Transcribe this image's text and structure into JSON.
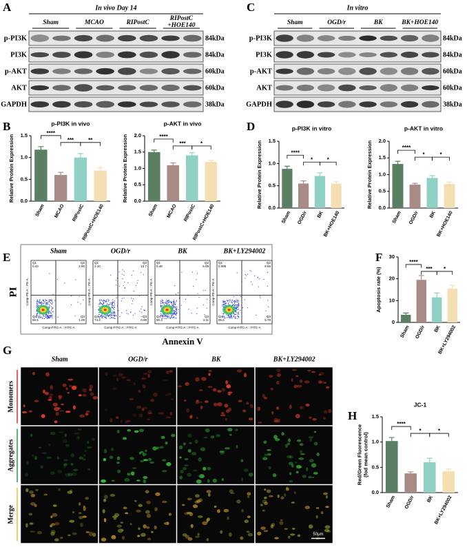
{
  "panel_labels": [
    "A",
    "B",
    "C",
    "D",
    "E",
    "F",
    "G",
    "H"
  ],
  "blots": [
    {
      "title": "In vivo Day 14",
      "groups": [
        "Sham",
        "MCAO",
        "RIPostC",
        [
          "RIPostC",
          "+HOE140"
        ]
      ],
      "rows": [
        "p-PI3K",
        "PI3K",
        "p-AKT",
        "AKT",
        "GAPDH"
      ],
      "sizes": [
        "84kDa",
        "84kDa",
        "60kDa",
        "60kDa",
        "38kDa"
      ]
    },
    {
      "title": "In vitro",
      "groups": [
        "Sham",
        "OGD/r",
        "BK",
        "BK+HOE140"
      ],
      "rows": [
        "p-PI3K",
        "PI3K",
        "p-AKT",
        "AKT",
        "GAPDH"
      ],
      "sizes": [
        "84kDa",
        "84kDa",
        "60kDa",
        "60kDa",
        "38kDa"
      ]
    }
  ],
  "chart_data": [
    {
      "type": "bar",
      "title": "p-PI3K in vivo",
      "ylabel": "Relative Protein Expression",
      "categories": [
        "Sham",
        "MCAO",
        "RIPostC",
        "RIPostC+HOE140"
      ],
      "values": [
        1.18,
        0.6,
        1.0,
        0.7
      ],
      "errors": [
        0.07,
        0.06,
        0.09,
        0.07
      ],
      "colors": [
        "#5b7f63",
        "#a88a86",
        "#8fd1c4",
        "#f4dfb2"
      ],
      "ylim": [
        0,
        1.5
      ],
      "yticks": [
        {
          "value": 0,
          "label": "0.0"
        },
        0.5,
        {
          "value": 1,
          "label": "1.0"
        },
        1.5
      ],
      "significance": [
        "****",
        "***",
        "**"
      ]
    },
    {
      "type": "bar",
      "title": "p-AKT in vivo",
      "ylabel": "Relative Protein Expression",
      "categories": [
        "Sham",
        "MCAO",
        "RIPostC",
        "RIPostC+HOE140"
      ],
      "values": [
        1.5,
        1.1,
        1.4,
        1.2
      ],
      "errors": [
        0.06,
        0.07,
        0.08,
        0.05
      ],
      "colors": [
        "#5b7f63",
        "#a88a86",
        "#8fd1c4",
        "#f4dfb2"
      ],
      "ylim": [
        0,
        2
      ],
      "yticks": [
        {
          "value": 0,
          "label": "0.0"
        },
        0.5,
        {
          "value": 1,
          "label": "1.0"
        },
        1.5,
        {
          "value": 2,
          "label": "2.0"
        }
      ],
      "significance": [
        "****",
        "***",
        "*"
      ]
    },
    {
      "type": "bar",
      "title": "p-PI3K in vitro",
      "ylabel": "Relative Protein Expression",
      "categories": [
        "Sham",
        "OGD/r",
        "BK",
        "BK+HOE140"
      ],
      "values": [
        0.88,
        0.55,
        0.72,
        0.55
      ],
      "errors": [
        0.06,
        0.06,
        0.07,
        0.04
      ],
      "colors": [
        "#5b7f63",
        "#a88a86",
        "#8fd1c4",
        "#f4dfb2"
      ],
      "ylim": [
        0,
        1.5
      ],
      "yticks": [
        {
          "value": 0,
          "label": "0.0"
        },
        0.5,
        {
          "value": 1,
          "label": "1.0"
        },
        1.5
      ],
      "significance": [
        "****",
        "*",
        "*"
      ]
    },
    {
      "type": "bar",
      "title": "p-AKT in vitro",
      "ylabel": "Relative Protein Expression",
      "categories": [
        "Sham",
        "OGD/r",
        "BK",
        "BK+HOE140"
      ],
      "values": [
        1.32,
        0.7,
        0.9,
        0.72
      ],
      "errors": [
        0.08,
        0.04,
        0.07,
        0.06
      ],
      "colors": [
        "#5b7f63",
        "#a88a86",
        "#8fd1c4",
        "#f4dfb2"
      ],
      "ylim": [
        0,
        2
      ],
      "yticks": [
        {
          "value": 0,
          "label": "0.0"
        },
        0.5,
        {
          "value": 1,
          "label": "1.0"
        },
        1.5,
        {
          "value": 2,
          "label": "2.0"
        }
      ],
      "significance": [
        "****",
        "*",
        "*"
      ]
    },
    {
      "type": "bar",
      "ylabel": "Apoptosis rate (%)",
      "categories": [
        "Sham",
        "OGD/r",
        "BK",
        "BK+LY294002"
      ],
      "values": [
        3.5,
        19.5,
        11.5,
        15.5
      ],
      "errors": [
        0.8,
        2.0,
        2.0,
        1.5
      ],
      "colors": [
        "#5b7f63",
        "#a88a86",
        "#8fd1c4",
        "#f4dfb2"
      ],
      "ylim": [
        0,
        30
      ],
      "yticks": [
        0,
        10,
        20,
        30
      ],
      "significance": [
        "****",
        "***",
        "*"
      ]
    },
    {
      "type": "bar",
      "title": "JC-1",
      "ylabel": [
        "Red/Green Fluorescence",
        "(fod mean control)"
      ],
      "categories": [
        "Sham",
        "OGD/r",
        "BK",
        "BK+LY294002"
      ],
      "values": [
        1.02,
        0.38,
        0.6,
        0.42
      ],
      "errors": [
        0.07,
        0.03,
        0.08,
        0.05
      ],
      "colors": [
        "#5b7f63",
        "#a88a86",
        "#8fd1c4",
        "#f4dfb2"
      ],
      "ylim": [
        0,
        1.5
      ],
      "yticks": [
        {
          "value": 0,
          "label": "0.0"
        },
        0.5,
        {
          "value": 1,
          "label": "1.0"
        },
        1.5
      ],
      "significance": [
        "****",
        "*",
        "*"
      ]
    }
  ],
  "flow": {
    "ylabel": "PI",
    "xlabel": "Annexin V",
    "x_axis": "Comp-FITC-A :: FITC-A",
    "y_axis": "Comp-PE-A :: PE-A",
    "plots": [
      {
        "title": "Sham",
        "quadrants": [
          [
            "Q1",
            "0.43"
          ],
          [
            "Q2",
            "2.90"
          ],
          [
            "Q3",
            "1.09"
          ],
          [
            "Q4",
            "95.5"
          ]
        ]
      },
      {
        "title": "OGD/r",
        "quadrants": [
          [
            "Q1",
            "1.10"
          ],
          [
            "Q2",
            "13.7"
          ],
          [
            "Q3",
            "0.98"
          ],
          [
            "Q4",
            "74.2"
          ]
        ]
      },
      {
        "title": "BK",
        "quadrants": [
          [
            "Q1",
            "0.48"
          ],
          [
            "Q2",
            "5.09"
          ],
          [
            "Q3",
            "4.11"
          ],
          [
            "Q4",
            "90.3"
          ]
        ]
      },
      {
        "title": "BK+LY294002",
        "quadrants": [
          [
            "Q1",
            "0.086"
          ],
          [
            "Q2",
            "8.55"
          ],
          [
            "Q3",
            "5.78"
          ],
          [
            "Q4",
            "85.6"
          ]
        ]
      }
    ]
  },
  "jc1_images": {
    "columns": [
      "Sham",
      "OGD/r",
      "BK",
      "BK+LY294002"
    ],
    "rows": [
      "Monomers",
      "Aggregates",
      "Merge"
    ],
    "scale": "50μm"
  }
}
